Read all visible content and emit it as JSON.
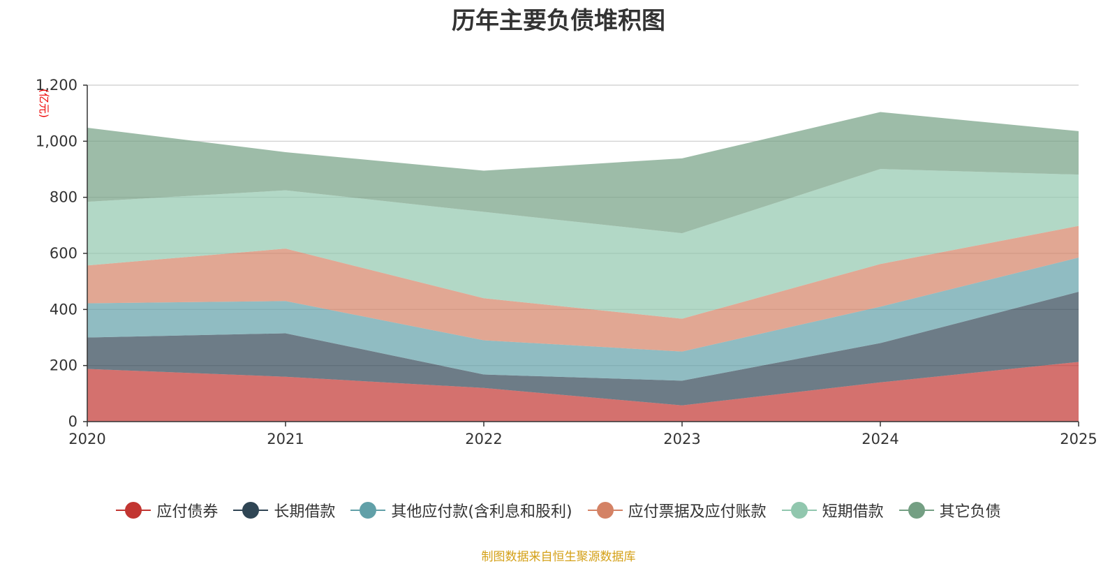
{
  "chart_data": {
    "type": "area",
    "stacked": true,
    "title": "历年主要负债堆积图",
    "unit_label": "(亿元)",
    "x": [
      "2020",
      "2021",
      "2022",
      "2023",
      "2024",
      "2025"
    ],
    "ylim": [
      0,
      1200
    ],
    "yticks": [
      0,
      200,
      400,
      600,
      800,
      1000,
      1200
    ],
    "ytick_labels": [
      "0",
      "200",
      "400",
      "600",
      "800",
      "1,000",
      "1,200"
    ],
    "grid": true,
    "legend_position": "bottom",
    "series": [
      {
        "name": "应付债券",
        "color": "#c23531",
        "values": [
          188,
          160,
          120,
          58,
          140,
          213
        ]
      },
      {
        "name": "长期借款",
        "color": "#2f4554",
        "values": [
          112,
          155,
          48,
          88,
          140,
          250
        ]
      },
      {
        "name": "其他应付款(含利息和股利)",
        "color": "#61a0a8",
        "values": [
          122,
          115,
          122,
          104,
          130,
          122
        ]
      },
      {
        "name": "应付票据及应付账款",
        "color": "#d48265",
        "values": [
          135,
          187,
          150,
          117,
          152,
          113
        ]
      },
      {
        "name": "短期借款",
        "color": "#91c7ae",
        "values": [
          227,
          208,
          308,
          305,
          339,
          183
        ]
      },
      {
        "name": "其它负债",
        "color": "#749f83",
        "values": [
          264,
          136,
          147,
          267,
          203,
          155
        ]
      }
    ]
  },
  "footer": {
    "source": "制图数据来自恒生聚源数据库"
  }
}
